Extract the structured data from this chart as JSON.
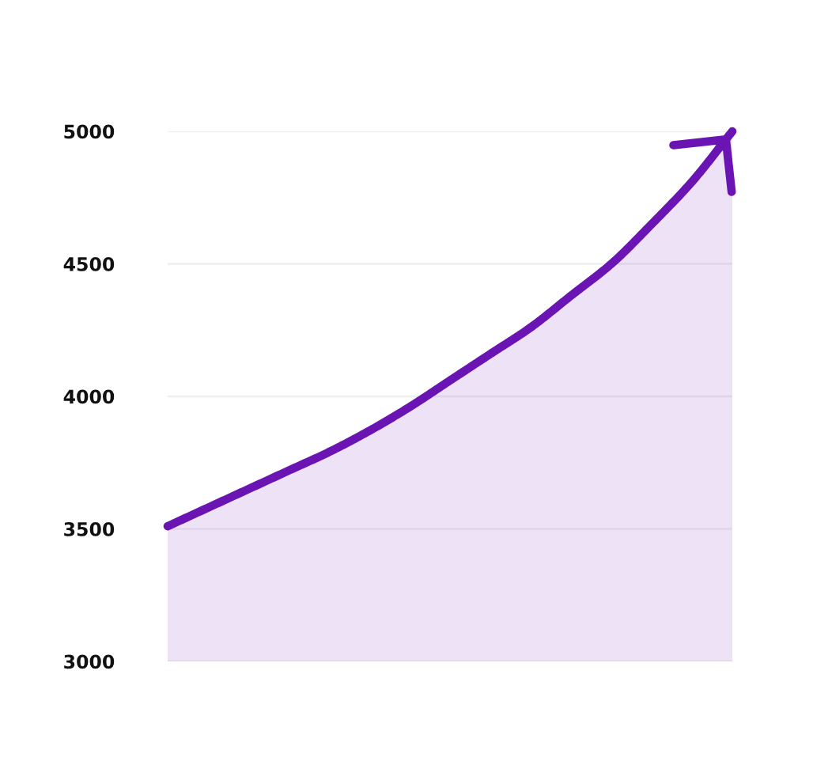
{
  "chart_data": {
    "type": "area",
    "categories": [
      null,
      null,
      null,
      null,
      null,
      null,
      null,
      null,
      null,
      null,
      null,
      null,
      null,
      null,
      null
    ],
    "series": [
      {
        "color": "#6a14b4",
        "values": [
          3510,
          3580,
          3650,
          3720,
          3790,
          3870,
          3960,
          4060,
          4160,
          4260,
          4380,
          4500,
          4650,
          4810,
          5000
        ]
      }
    ],
    "ylim": [
      3000,
      5000
    ],
    "yticks": [
      3000,
      3500,
      4000,
      4500,
      5000
    ],
    "grid": "y",
    "tick_labels": "y",
    "line_style": "solid",
    "marker": "none"
  }
}
